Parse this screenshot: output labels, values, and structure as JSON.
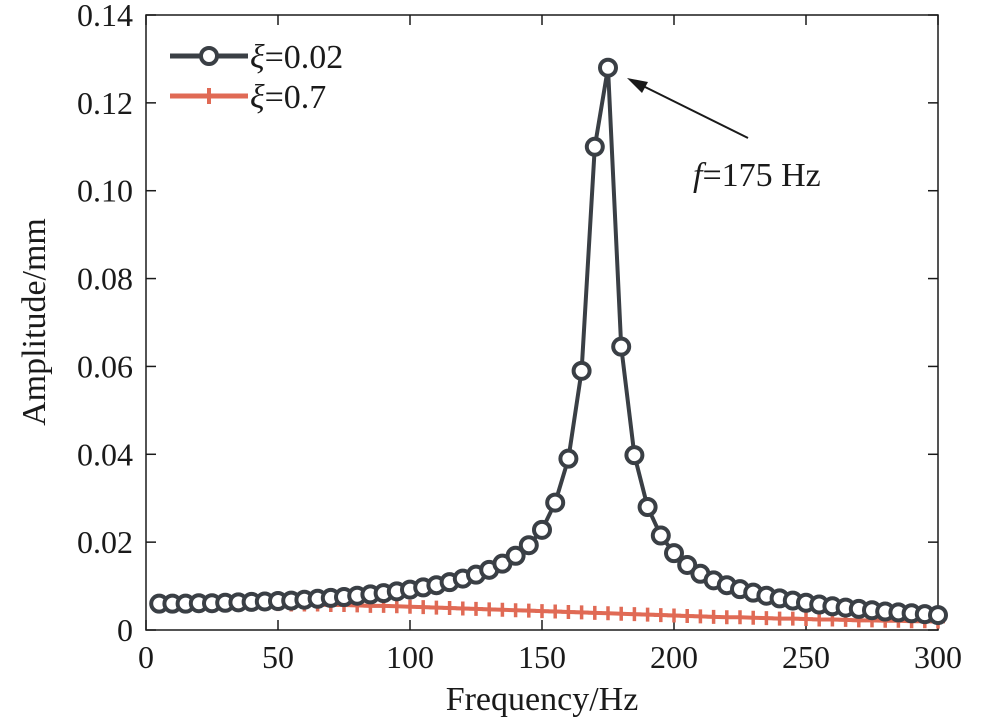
{
  "chart_data": {
    "type": "line",
    "xlabel": "Frequency/Hz",
    "ylabel": "Amplitude/mm",
    "xlim": [
      0,
      300
    ],
    "ylim": [
      0,
      0.14
    ],
    "xticks": [
      0,
      50,
      100,
      150,
      200,
      250,
      300
    ],
    "xtick_labels": [
      "0",
      "50",
      "100",
      "150",
      "200",
      "250",
      "300"
    ],
    "yticks": [
      0,
      0.02,
      0.04,
      0.06,
      0.08,
      0.1,
      0.12,
      0.14
    ],
    "ytick_labels": [
      "0",
      "0.02",
      "0.04",
      "0.06",
      "0.08",
      "0.10",
      "0.12",
      "0.14"
    ],
    "grid": false,
    "legend_position": "top-left",
    "x": [
      5,
      10,
      15,
      20,
      25,
      30,
      35,
      40,
      45,
      50,
      55,
      60,
      65,
      70,
      75,
      80,
      85,
      90,
      95,
      100,
      105,
      110,
      115,
      120,
      125,
      130,
      135,
      140,
      145,
      150,
      155,
      160,
      165,
      170,
      175,
      180,
      185,
      190,
      195,
      200,
      205,
      210,
      215,
      220,
      225,
      230,
      235,
      240,
      245,
      250,
      255,
      260,
      265,
      270,
      275,
      280,
      285,
      290,
      295,
      300
    ],
    "series": [
      {
        "legend_symbol": "ξ",
        "legend_value": "=0.02",
        "color": "#3a3f45",
        "marker": "circle",
        "values": [
          0.006,
          0.006,
          0.006,
          0.0061,
          0.0061,
          0.0062,
          0.0063,
          0.0064,
          0.0065,
          0.0066,
          0.0067,
          0.0069,
          0.0071,
          0.0073,
          0.0075,
          0.0078,
          0.0081,
          0.0084,
          0.0088,
          0.0092,
          0.0097,
          0.0102,
          0.0109,
          0.0117,
          0.0126,
          0.0137,
          0.0151,
          0.0169,
          0.0193,
          0.0228,
          0.029,
          0.039,
          0.059,
          0.11,
          0.128,
          0.0645,
          0.0398,
          0.028,
          0.0215,
          0.0175,
          0.0148,
          0.0128,
          0.0113,
          0.0102,
          0.0093,
          0.0085,
          0.0078,
          0.0072,
          0.0067,
          0.0062,
          0.0058,
          0.0054,
          0.0051,
          0.0048,
          0.0045,
          0.0042,
          0.004,
          0.0038,
          0.0036,
          0.0034
        ]
      },
      {
        "legend_symbol": "ξ",
        "legend_value": "=0.7",
        "color": "#e06a55",
        "marker": "plus",
        "values": [
          0.0059,
          0.0059,
          0.0059,
          0.0059,
          0.0059,
          0.0059,
          0.0059,
          0.0059,
          0.0059,
          0.0059,
          0.0058,
          0.0058,
          0.0058,
          0.0057,
          0.0057,
          0.0056,
          0.0055,
          0.0055,
          0.0054,
          0.0053,
          0.0052,
          0.0051,
          0.005,
          0.0049,
          0.0048,
          0.0047,
          0.0046,
          0.0045,
          0.0044,
          0.0043,
          0.0042,
          0.0041,
          0.004,
          0.0039,
          0.0038,
          0.0037,
          0.0036,
          0.0035,
          0.0034,
          0.0033,
          0.0032,
          0.0031,
          0.003,
          0.0029,
          0.0029,
          0.0028,
          0.0027,
          0.0026,
          0.0026,
          0.0025,
          0.0024,
          0.0024,
          0.0023,
          0.0022,
          0.0022,
          0.0021,
          0.0021,
          0.002,
          0.002,
          0.0019
        ]
      }
    ],
    "annotation": {
      "symbol": "f",
      "text": "=175 Hz",
      "point_x": 175,
      "point_y": 0.128
    }
  }
}
